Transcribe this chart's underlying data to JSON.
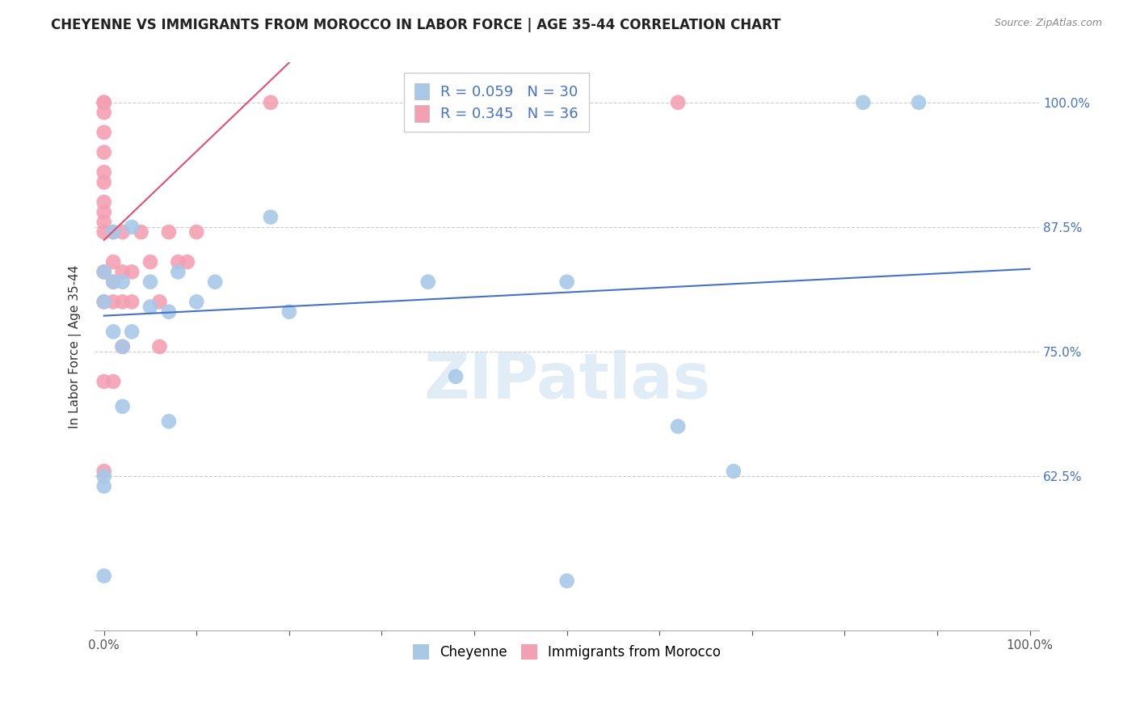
{
  "title": "CHEYENNE VS IMMIGRANTS FROM MOROCCO IN LABOR FORCE | AGE 35-44 CORRELATION CHART",
  "source": "Source: ZipAtlas.com",
  "ylabel": "In Labor Force | Age 35-44",
  "ytick_labels": [
    "100.0%",
    "87.5%",
    "75.0%",
    "62.5%"
  ],
  "ytick_values": [
    1.0,
    0.875,
    0.75,
    0.625
  ],
  "xlim": [
    -0.01,
    1.01
  ],
  "ylim": [
    0.47,
    1.04
  ],
  "cheyenne_R": 0.059,
  "cheyenne_N": 30,
  "morocco_R": 0.345,
  "morocco_N": 36,
  "cheyenne_color": "#a8c8e8",
  "morocco_color": "#f4a0b4",
  "cheyenne_line_color": "#4472c4",
  "morocco_line_color": "#e05070",
  "watermark": "ZIPatlas",
  "cheyenne_x": [
    0.0,
    0.0,
    0.0,
    0.0,
    0.0,
    0.01,
    0.01,
    0.01,
    0.02,
    0.02,
    0.02,
    0.03,
    0.03,
    0.05,
    0.05,
    0.07,
    0.07,
    0.08,
    0.1,
    0.12,
    0.18,
    0.2,
    0.35,
    0.38,
    0.5,
    0.62,
    0.68,
    0.82,
    0.88,
    0.5
  ],
  "cheyenne_y": [
    0.525,
    0.615,
    0.625,
    0.8,
    0.83,
    0.77,
    0.82,
    0.87,
    0.695,
    0.755,
    0.82,
    0.77,
    0.875,
    0.795,
    0.82,
    0.68,
    0.79,
    0.83,
    0.8,
    0.82,
    0.885,
    0.79,
    0.82,
    0.725,
    0.82,
    0.675,
    0.63,
    1.0,
    1.0,
    0.52
  ],
  "morocco_x": [
    0.0,
    0.0,
    0.0,
    0.0,
    0.0,
    0.0,
    0.0,
    0.0,
    0.0,
    0.0,
    0.0,
    0.0,
    0.0,
    0.0,
    0.0,
    0.01,
    0.01,
    0.01,
    0.01,
    0.01,
    0.02,
    0.02,
    0.02,
    0.02,
    0.03,
    0.03,
    0.04,
    0.05,
    0.06,
    0.06,
    0.07,
    0.08,
    0.09,
    0.1,
    0.18,
    0.62
  ],
  "morocco_y": [
    0.63,
    0.72,
    0.8,
    0.83,
    0.87,
    0.88,
    0.89,
    0.9,
    0.92,
    0.93,
    0.95,
    0.97,
    0.99,
    1.0,
    1.0,
    0.72,
    0.8,
    0.82,
    0.84,
    0.87,
    0.755,
    0.8,
    0.83,
    0.87,
    0.8,
    0.83,
    0.87,
    0.84,
    0.755,
    0.8,
    0.87,
    0.84,
    0.84,
    0.87,
    1.0,
    1.0
  ],
  "cheyenne_line_x": [
    0.0,
    1.0
  ],
  "cheyenne_line_y": [
    0.786,
    0.833
  ],
  "morocco_line_x": [
    0.0,
    0.2
  ],
  "morocco_line_y": [
    0.862,
    1.04
  ]
}
